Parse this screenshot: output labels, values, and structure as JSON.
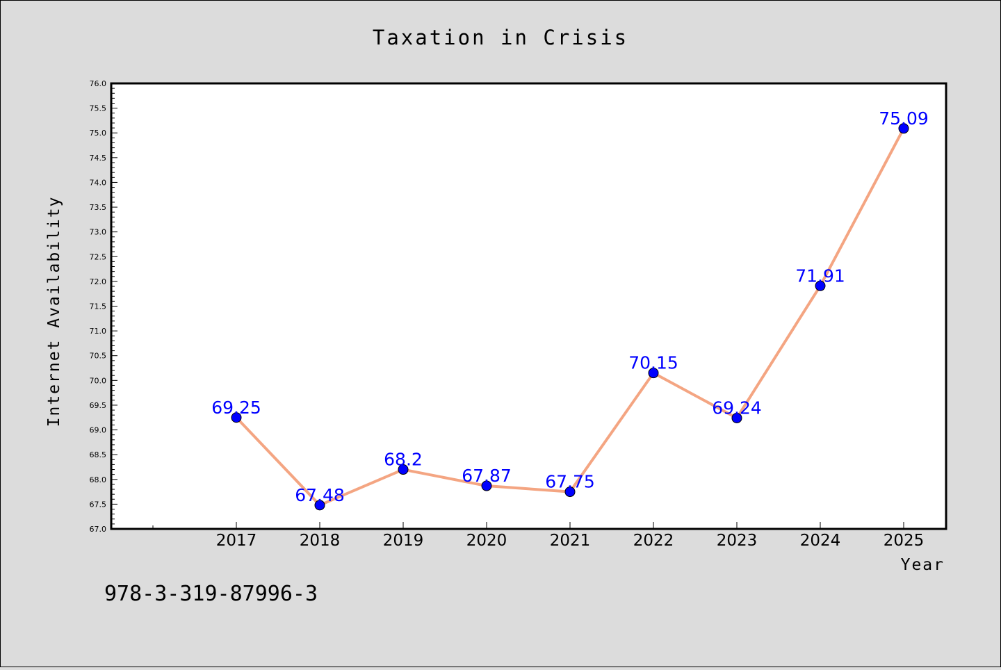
{
  "chart_data": {
    "type": "line",
    "title": "Taxation in Crisis",
    "xlabel": "Year",
    "ylabel": "Internet Availability",
    "categories": [
      "2017",
      "2018",
      "2019",
      "2020",
      "2021",
      "2022",
      "2023",
      "2024",
      "2025"
    ],
    "series": [
      {
        "values": [
          69.25,
          67.48,
          68.2,
          67.87,
          67.75,
          70.15,
          69.24,
          71.91,
          75.09
        ],
        "labels": [
          "69.25",
          "67.48",
          "68.2",
          "67.87",
          "67.75",
          "70.15",
          "69.24",
          "71.91",
          "75.09"
        ],
        "line_color": "#f4a582",
        "marker_color": "#0000ff"
      }
    ],
    "ylim": [
      67.0,
      76.0
    ],
    "yticks": [
      "67.0",
      "67.5",
      "68.0",
      "68.5",
      "69.0",
      "69.5",
      "70.0",
      "70.5",
      "71.0",
      "71.5",
      "72.0",
      "72.5",
      "73.0",
      "73.5",
      "74.0",
      "74.5",
      "75.0",
      "75.5",
      "76.0"
    ],
    "grid": false,
    "legend": "none",
    "background_color": "#dcdcdc",
    "plot_background_color": "#ffffff",
    "label_color": "#0000ff"
  },
  "isbn": "978-3-319-87996-3"
}
